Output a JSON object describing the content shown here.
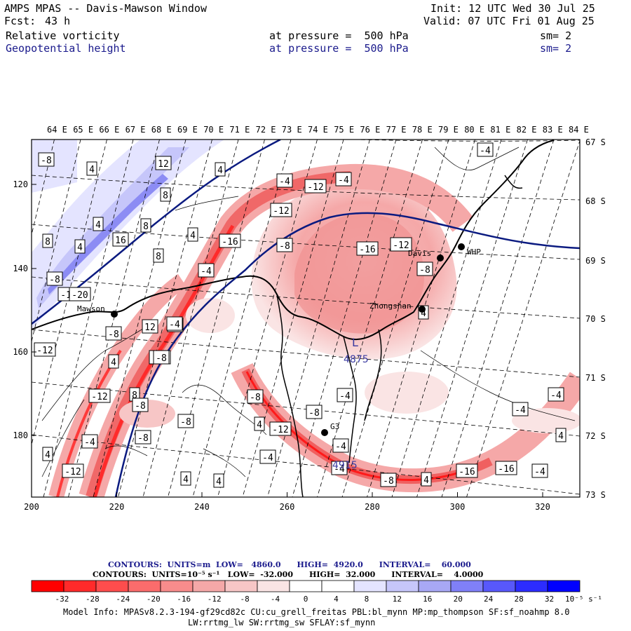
{
  "header": {
    "title": "AMPS MPAS -- Davis-Mawson Window",
    "fcst_label": "Fcst:",
    "fcst_value": "43 h",
    "init": "Init: 12 UTC Wed 30 Jul 25",
    "valid": "Valid: 07 UTC Fri 01 Aug 25",
    "field1": "Relative vorticity",
    "field1_level": "at pressure =  500 hPa",
    "field1_sm": "sm= 2",
    "field2": "Geopotential height",
    "field2_level": "at pressure =  500 hPa",
    "field2_sm": "sm= 2"
  },
  "map": {
    "lon_labels": [
      "64 E",
      "65 E",
      "66 E",
      "67 E",
      "68 E",
      "69 E",
      "70 E",
      "71 E",
      "72 E",
      "73 E",
      "74 E",
      "75 E",
      "76 E",
      "77 E",
      "78 E",
      "79 E",
      "80 E",
      "81 E",
      "82 E",
      "83 E",
      "84 E"
    ],
    "lat_labels": [
      "67 S",
      "68 S",
      "69 S",
      "70 S",
      "71 S",
      "72 S",
      "73 S"
    ],
    "x_ticks": [
      "200",
      "220",
      "240",
      "260",
      "280",
      "300",
      "320"
    ],
    "y_ticks": [
      "120",
      "140",
      "160",
      "180"
    ],
    "stations": [
      {
        "name": "Davis",
        "marker": "●"
      },
      {
        "name": "WHP",
        "marker": "●"
      },
      {
        "name": "Zhongshan",
        "marker": "●"
      },
      {
        "name": "Mawson",
        "marker": "●"
      },
      {
        "name": "G3",
        "marker": "●"
      }
    ],
    "low_markers": [
      {
        "letter": "L",
        "value": "4875"
      },
      {
        "letter": "L",
        "value": "4915"
      }
    ],
    "box_labels": [
      "-8",
      "4",
      "12",
      "4",
      "8",
      "-4",
      "-12",
      "-4",
      "4",
      "8",
      "4",
      "-12",
      "8",
      "4",
      "-16",
      "-8",
      "-16",
      "-12",
      "8",
      "16",
      "4",
      "-4",
      "-8",
      "-12",
      "-8",
      "12",
      "-20",
      "-12",
      "4",
      "-16",
      "-4",
      "8",
      "-8",
      "-8",
      "-8",
      "-12",
      "-8",
      "4",
      "-8",
      "8",
      "-12",
      "-4",
      "4",
      "4",
      "-4",
      "4",
      "-12",
      "-4",
      "-4",
      "-8",
      "4",
      "-16",
      "-16",
      "-4",
      "-4",
      "-4",
      "4",
      "-4",
      "4",
      "-8",
      "-8",
      "-4",
      "-4"
    ]
  },
  "contours": {
    "line1": "CONTOURS:  UNITS=m  LOW=   4860.0      HIGH=  4920.0      INTERVAL=    60.000",
    "line2": "CONTOURS:  UNITS=10⁻⁵ s⁻¹   LOW=  -32.000      HIGH=  32.000      INTERVAL=    4.0000"
  },
  "colorbar": {
    "labels": [
      "-32",
      "-28",
      "-24",
      "-20",
      "-16",
      "-12",
      "-8",
      "-4",
      "0",
      "4",
      "8",
      "12",
      "16",
      "20",
      "24",
      "28",
      "32"
    ],
    "units": "10⁻⁵ s⁻¹",
    "colors": [
      "#ff0000",
      "#ff2a2a",
      "#fe4d4d",
      "#fb6c6c",
      "#f88c8c",
      "#f5a8a8",
      "#f7c6c6",
      "#fae4e4",
      "#ffffff",
      "#ffffff",
      "#e4e4ff",
      "#c6c6fa",
      "#a8a8f5",
      "#8080f8",
      "#5858fb",
      "#2c2cfe",
      "#0000ff"
    ]
  },
  "footer": {
    "model_info": "Model Info: MPASv8.2.3-194-gf29cd82c CU:cu_grell_freitas PBL:bl_mynn MP:mp_thompson SF:sf_noahmp 8.0",
    "model_info2": "LW:rrtmg_lw SW:rrtmg_sw SFLAY:sf_mynn"
  }
}
